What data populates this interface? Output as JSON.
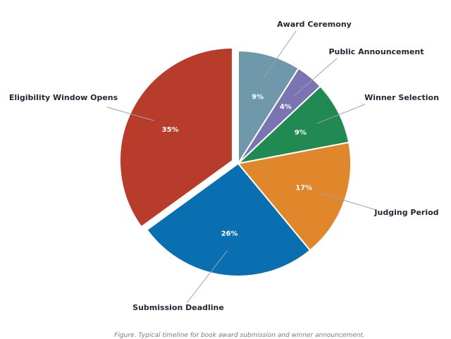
{
  "chart_data": {
    "type": "pie",
    "series": [
      {
        "label": "Award Ceremony",
        "value": 9,
        "value_label": "9%",
        "color": "#6f98ab"
      },
      {
        "label": "Public Announcement",
        "value": 4,
        "value_label": "4%",
        "color": "#7b74b3"
      },
      {
        "label": "Winner Selection",
        "value": 9,
        "value_label": "9%",
        "color": "#218a52"
      },
      {
        "label": "Judging Period",
        "value": 17,
        "value_label": "17%",
        "color": "#e0872b"
      },
      {
        "label": "Submission Deadline",
        "value": 26,
        "value_label": "26%",
        "color": "#0a6fb0"
      },
      {
        "label": "Eligibility Window Opens",
        "value": 35,
        "value_label": "35%",
        "color": "#b83c2c"
      }
    ],
    "start": "12 o'clock",
    "direction": "clockwise",
    "exploded": [
      "Eligibility Window Opens"
    ]
  },
  "caption": "Figure. Typical timeline for book award submission and winner announcement."
}
